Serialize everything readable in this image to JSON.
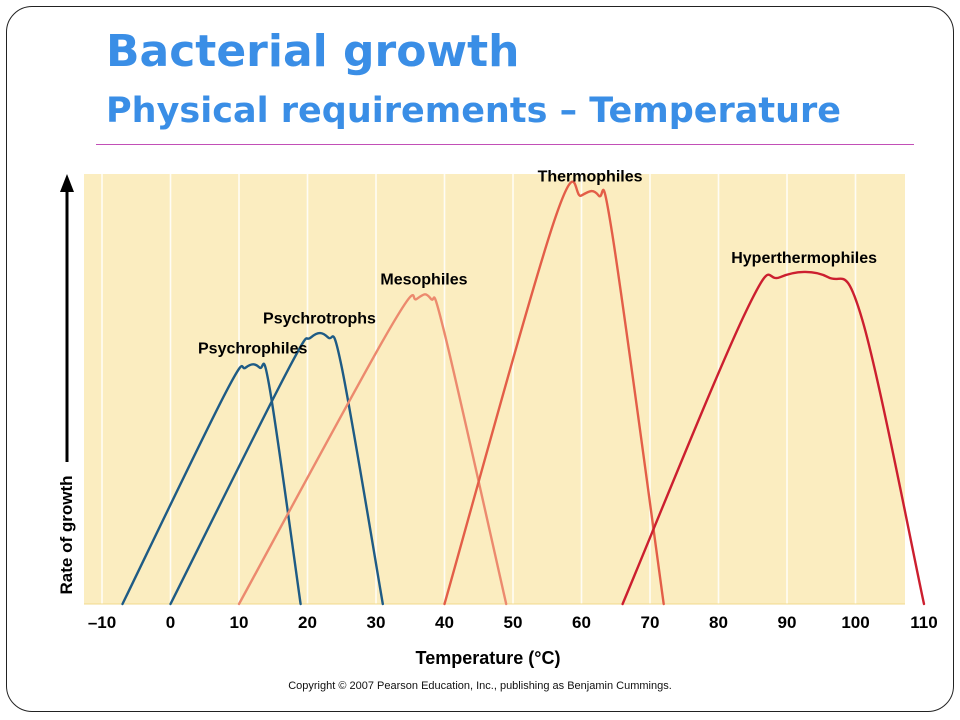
{
  "slide": {
    "title": "Bacterial growth",
    "subtitle": "Physical requirements – Temperature",
    "copyright": "Copyright © 2007 Pearson Education, Inc., publishing as Benjamin Cummings."
  },
  "chart_data": {
    "type": "line",
    "title": "",
    "xlabel": "Temperature (°C)",
    "ylabel": "Rate of growth",
    "xlim": [
      -10,
      110
    ],
    "ylim": [
      0,
      1
    ],
    "x_ticks": [
      -10,
      0,
      10,
      20,
      30,
      40,
      50,
      60,
      70,
      80,
      90,
      100,
      110
    ],
    "x_tick_labels": [
      "–10",
      "0",
      "10",
      "20",
      "30",
      "40",
      "50",
      "60",
      "70",
      "80",
      "90",
      "100",
      "110"
    ],
    "y_ticks_shown": false,
    "grid": "vertical",
    "background_color": "#fbedc0",
    "legend": "none (curves labeled directly)",
    "series": [
      {
        "name": "Psychrophiles",
        "color": "#1e5b85",
        "points": [
          [
            -7,
            0
          ],
          [
            8,
            0.49
          ],
          [
            11,
            0.55
          ],
          [
            13,
            0.55
          ],
          [
            14.5,
            0.5
          ],
          [
            19,
            0
          ]
        ]
      },
      {
        "name": "Psychrotrophs",
        "color": "#1e5b85",
        "points": [
          [
            0,
            0
          ],
          [
            17,
            0.54
          ],
          [
            20.5,
            0.62
          ],
          [
            23,
            0.62
          ],
          [
            25,
            0.55
          ],
          [
            31,
            0
          ]
        ]
      },
      {
        "name": "Mesophiles",
        "color": "#ec8a6e",
        "points": [
          [
            10,
            0
          ],
          [
            32,
            0.64
          ],
          [
            36,
            0.71
          ],
          [
            38,
            0.71
          ],
          [
            40,
            0.63
          ],
          [
            49,
            0
          ]
        ]
      },
      {
        "name": "Thermophiles",
        "color": "#e35e48",
        "points": [
          [
            40,
            0
          ],
          [
            56,
            0.89
          ],
          [
            60,
            0.95
          ],
          [
            62.5,
            0.95
          ],
          [
            64.5,
            0.86
          ],
          [
            72,
            0
          ]
        ]
      },
      {
        "name": "Hyperthermophiles",
        "color": "#cc1f2f",
        "points": [
          [
            66,
            0
          ],
          [
            84,
            0.68
          ],
          [
            89,
            0.76
          ],
          [
            96,
            0.76
          ],
          [
            101,
            0.66
          ],
          [
            110,
            0
          ]
        ]
      }
    ]
  }
}
